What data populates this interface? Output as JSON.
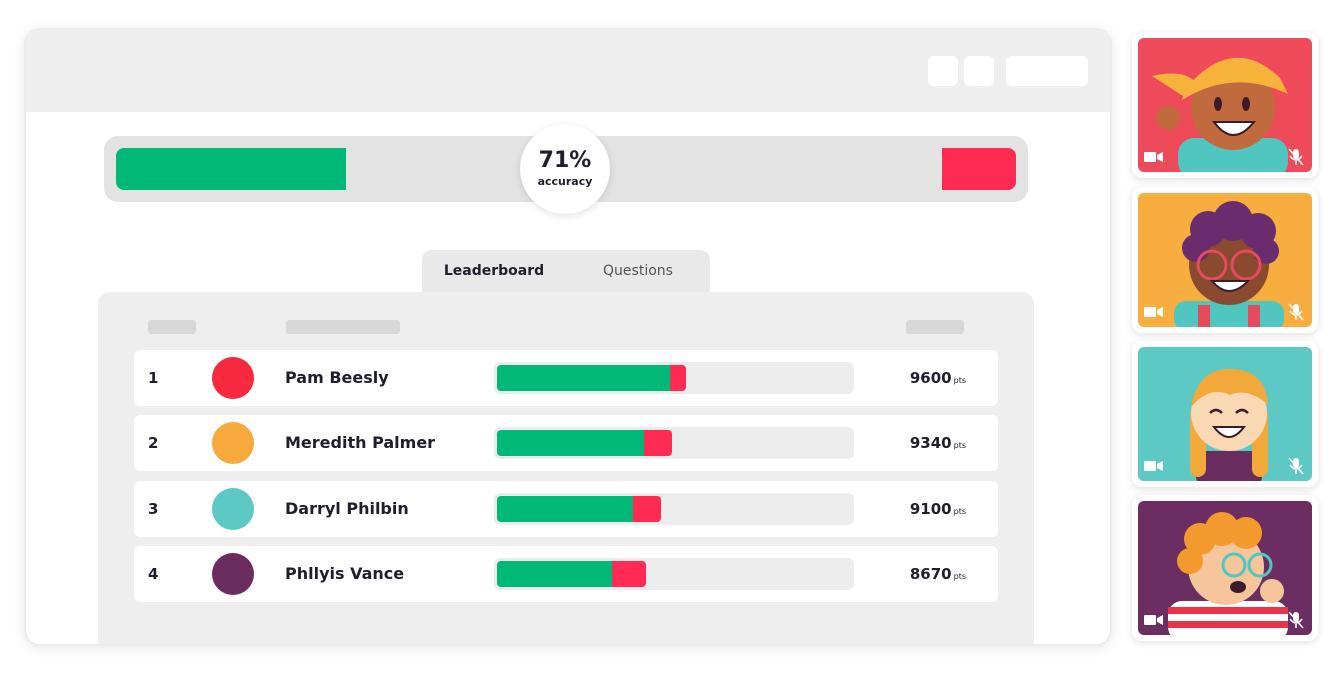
{
  "colors": {
    "correct": "#00b878",
    "incorrect": "#ff2b52"
  },
  "accuracy": {
    "value": "71%",
    "label": "accuracy",
    "fraction": 0.71
  },
  "tabs": [
    {
      "label": "Leaderboard",
      "active": true
    },
    {
      "label": "Questions",
      "active": false
    }
  ],
  "leaderboard": [
    {
      "rank": "1",
      "name": "Pam Beesly",
      "score": "9600",
      "unit": "pts",
      "avatar_color": "#f8283f",
      "correct": 0.49,
      "incorrect": 0.045
    },
    {
      "rank": "2",
      "name": "Meredith Palmer",
      "score": "9340",
      "unit": "pts",
      "avatar_color": "#f7a93b",
      "correct": 0.415,
      "incorrect": 0.08
    },
    {
      "rank": "3",
      "name": "Darryl Philbin",
      "score": "9100",
      "unit": "pts",
      "avatar_color": "#5dc9c4",
      "correct": 0.385,
      "incorrect": 0.08
    },
    {
      "rank": "4",
      "name": "Phllyis Vance",
      "score": "8670",
      "unit": "pts",
      "avatar_color": "#6a2c5e",
      "correct": 0.325,
      "incorrect": 0.095
    }
  ],
  "video_tiles": [
    {
      "background": "#ee4a5a",
      "icons": [
        "video-camera-icon",
        "microphone-muted-icon"
      ]
    },
    {
      "background": "#f7ae3f",
      "icons": [
        "video-camera-icon",
        "microphone-muted-icon"
      ]
    },
    {
      "background": "#5dc9c4",
      "icons": [
        "video-camera-icon",
        "microphone-muted-icon"
      ]
    },
    {
      "background": "#6c2d63",
      "icons": [
        "video-camera-icon",
        "microphone-muted-icon"
      ]
    }
  ]
}
